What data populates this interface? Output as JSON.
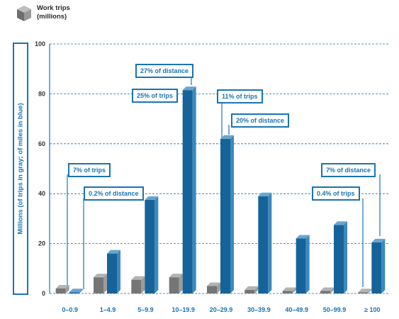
{
  "legend": {
    "label_line1": "Work trips",
    "label_line2": "(millions)",
    "colors": {
      "gray": "#8a8a8a",
      "blue": "#1a74b4"
    }
  },
  "chart_data": {
    "type": "bar",
    "ylabel": "Millions (of trips in gray; of miles in blue)",
    "xlabel": "",
    "ylim": [
      0,
      100
    ],
    "yticks": [
      0,
      20,
      40,
      60,
      80,
      100
    ],
    "categories": [
      "0–0.9",
      "1–4.9",
      "5–9.9",
      "10–19.9",
      "20–29.9",
      "30–39.9",
      "40–49.9",
      "50–99.9",
      "≥ 100"
    ],
    "series": [
      {
        "color": "#8a8a8a",
        "values": [
          2,
          6.5,
          5.5,
          6.5,
          3,
          1.5,
          1,
          1,
          0.5
        ]
      },
      {
        "color": "#1a74b4",
        "values": [
          0.5,
          16,
          37.5,
          81.5,
          62,
          39,
          22,
          27.5,
          20.5
        ]
      }
    ],
    "grid": true,
    "annotations": [
      {
        "text": "7% of trips"
      },
      {
        "text": "0.2% of distance"
      },
      {
        "text": "27% of distance"
      },
      {
        "text": "25% of trips"
      },
      {
        "text": "11% of trips"
      },
      {
        "text": "20% of distance"
      },
      {
        "text": "0.4% of trips"
      },
      {
        "text": "7% of distance"
      }
    ]
  }
}
